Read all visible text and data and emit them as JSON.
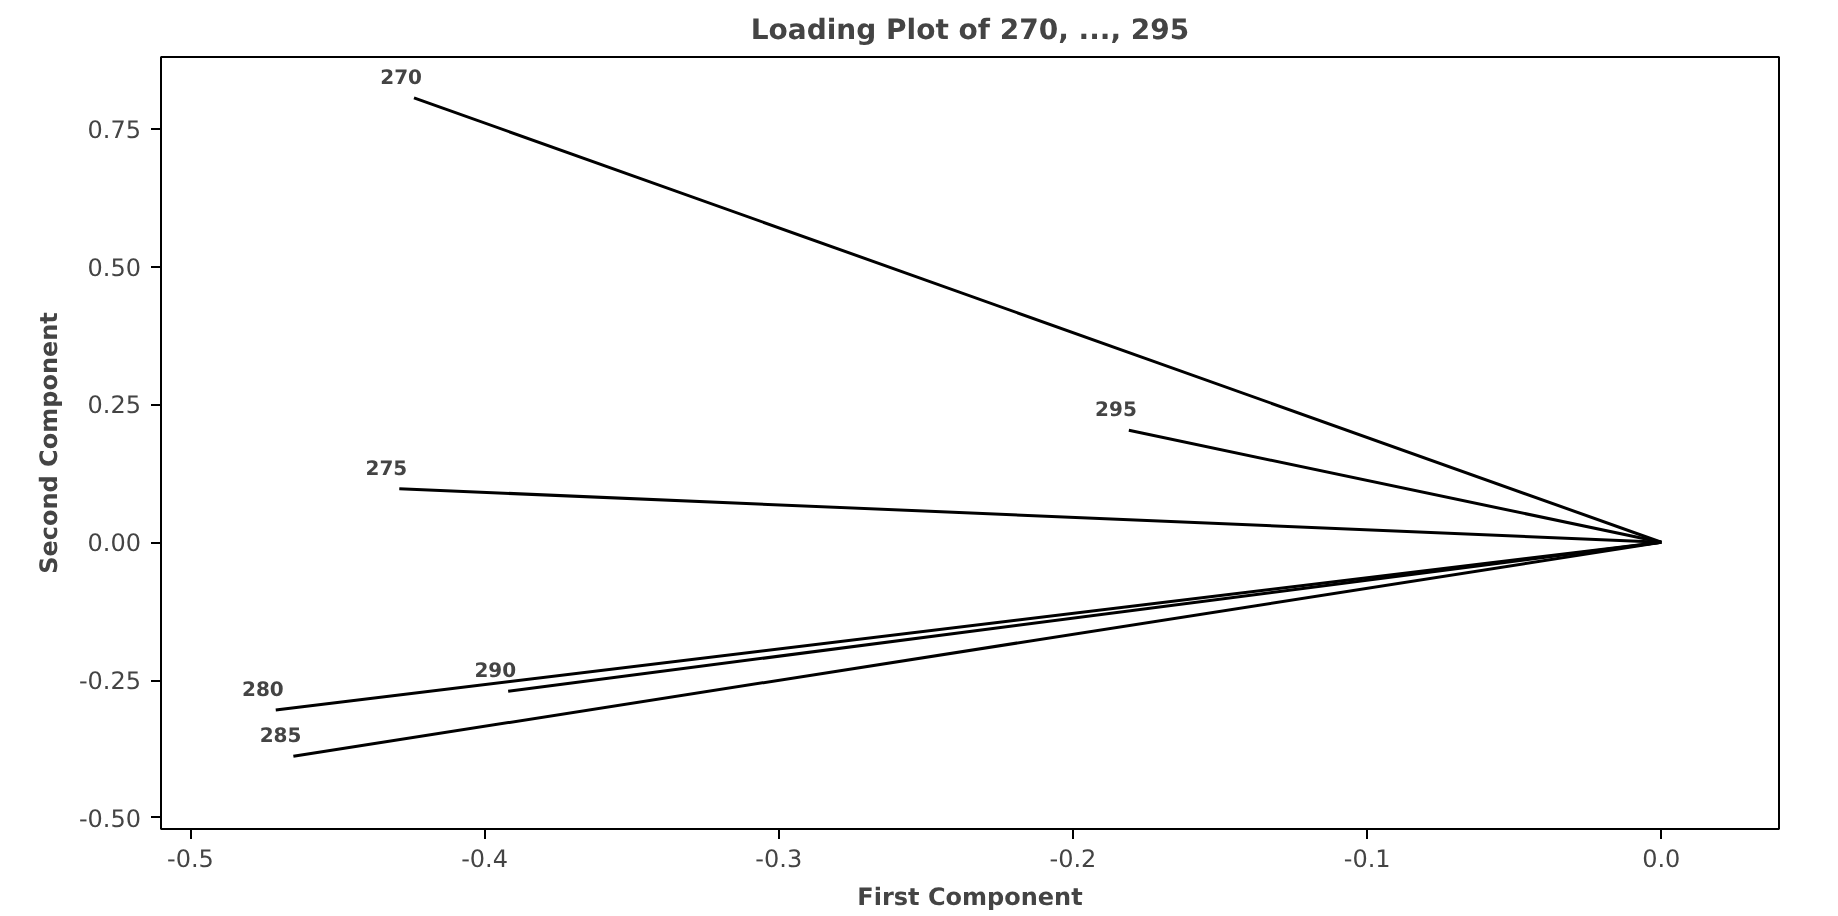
{
  "chart_data": {
    "type": "line",
    "title": "Loading Plot of 270, ..., 295",
    "xlabel": "First Component",
    "ylabel": "Second Component",
    "xlim": [
      -0.51,
      0.04
    ],
    "ylim": [
      -0.52,
      0.88
    ],
    "xticks": [
      -0.5,
      -0.4,
      -0.3,
      -0.2,
      -0.1,
      {
        "value": 0.0,
        "label": "0.0"
      }
    ],
    "yticks": [
      {
        "value": -0.5,
        "label": "-0.50"
      },
      {
        "value": -0.25,
        "label": "-0.25"
      },
      {
        "value": 0.0,
        "label": "0.00"
      },
      {
        "value": 0.25,
        "label": "0.25"
      },
      {
        "value": 0.5,
        "label": "0.50"
      },
      {
        "value": 0.75,
        "label": "0.75"
      }
    ],
    "grid": false,
    "marker": "none",
    "line_style": "solid",
    "series": [
      {
        "name": "270",
        "color": "#000000",
        "x": [
          0.0,
          -0.424
        ],
        "values": [
          0.0,
          0.806
        ]
      },
      {
        "name": "275",
        "color": "#000000",
        "x": [
          0.0,
          -0.429
        ],
        "values": [
          0.0,
          0.097
        ]
      },
      {
        "name": "280",
        "color": "#000000",
        "x": [
          0.0,
          -0.471
        ],
        "values": [
          0.0,
          -0.304
        ]
      },
      {
        "name": "285",
        "color": "#000000",
        "x": [
          0.0,
          -0.465
        ],
        "values": [
          0.0,
          -0.388
        ]
      },
      {
        "name": "290",
        "color": "#000000",
        "x": [
          0.0,
          -0.392
        ],
        "values": [
          0.0,
          -0.27
        ]
      },
      {
        "name": "295",
        "color": "#000000",
        "x": [
          0.0,
          -0.181
        ],
        "values": [
          0.0,
          0.203
        ]
      }
    ]
  }
}
